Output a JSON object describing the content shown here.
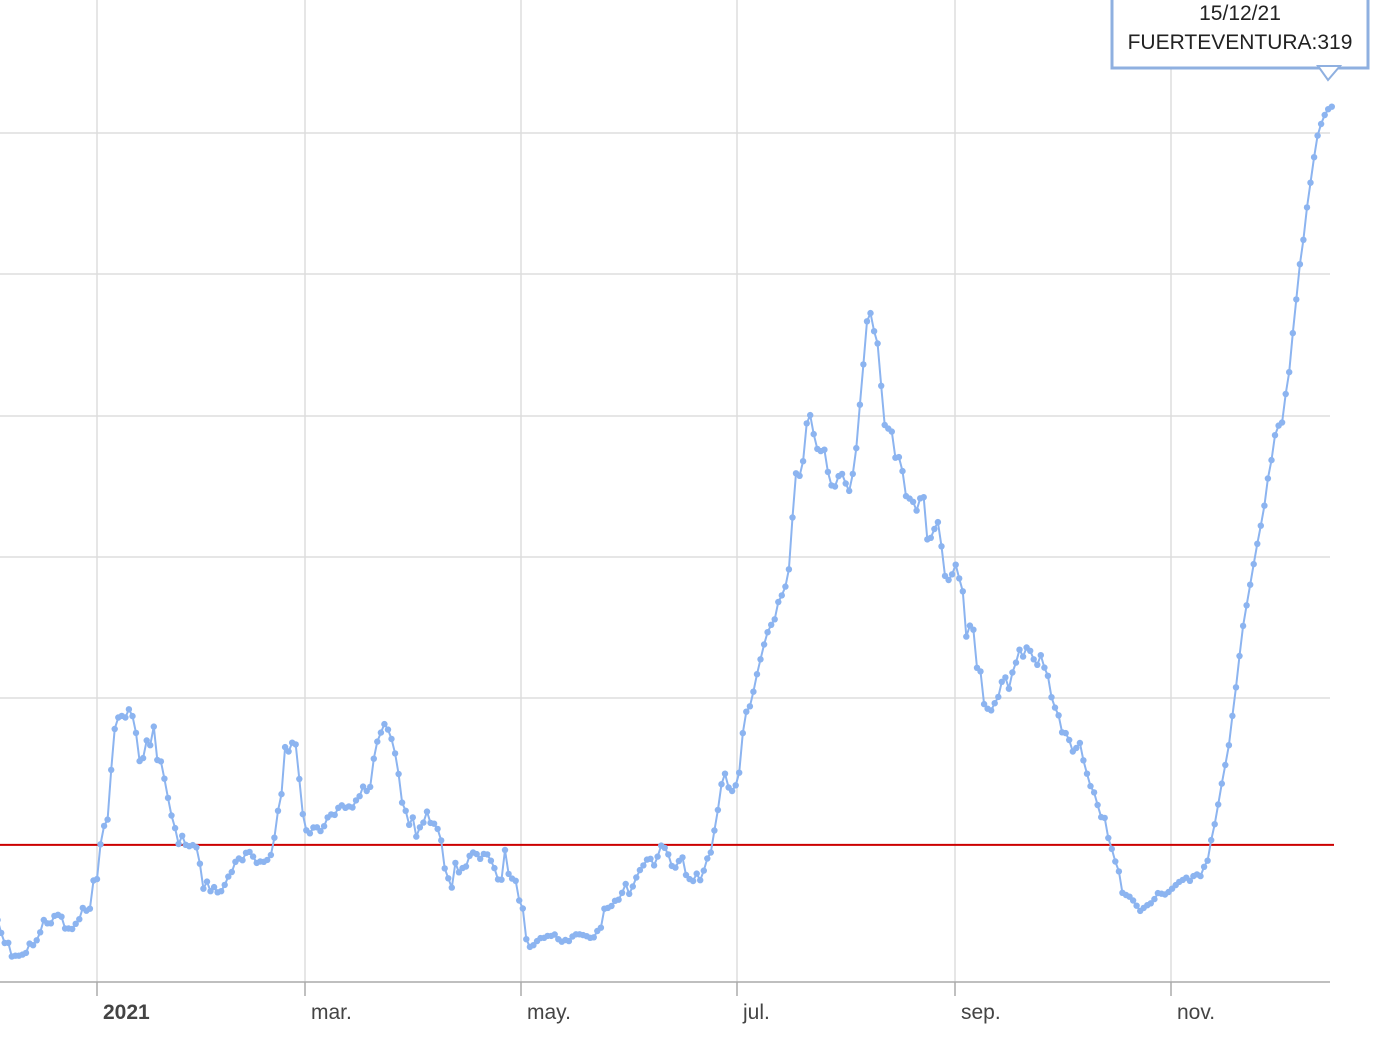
{
  "chart_data": {
    "type": "line",
    "x_labels": [
      "2021",
      "mar.",
      "may.",
      "jul.",
      "sep.",
      "nov."
    ],
    "x_label_positions_month_index": [
      0,
      2,
      4,
      6,
      8,
      10
    ],
    "series": [
      {
        "name": "FUERTEVENTURA",
        "color": "#8cb4f0",
        "x": [
          "2020-12-01",
          "2020-12-02",
          "2020-12-03",
          "2020-12-04",
          "2020-12-05",
          "2020-12-06",
          "2020-12-07",
          "2020-12-08",
          "2020-12-09",
          "2020-12-10",
          "2020-12-11",
          "2020-12-12",
          "2020-12-13",
          "2020-12-14",
          "2020-12-15",
          "2020-12-16",
          "2020-12-17",
          "2020-12-18",
          "2020-12-19",
          "2020-12-20",
          "2020-12-21",
          "2020-12-22",
          "2020-12-23",
          "2020-12-24",
          "2020-12-25",
          "2020-12-26",
          "2020-12-27",
          "2020-12-28",
          "2020-12-29",
          "2020-12-30",
          "2020-12-31",
          "2021-01-01",
          "2021-01-02",
          "2021-01-03",
          "2021-01-04",
          "2021-01-05",
          "2021-01-06",
          "2021-01-07",
          "2021-01-08",
          "2021-01-09",
          "2021-01-10",
          "2021-01-11",
          "2021-01-12",
          "2021-01-13",
          "2021-01-14",
          "2021-01-15",
          "2021-01-16",
          "2021-01-17",
          "2021-01-18",
          "2021-01-19",
          "2021-01-20",
          "2021-01-21",
          "2021-01-22",
          "2021-01-23",
          "2021-01-24",
          "2021-01-25",
          "2021-01-26",
          "2021-01-27",
          "2021-01-28",
          "2021-01-29",
          "2021-01-30",
          "2021-01-31",
          "2021-02-01",
          "2021-02-02",
          "2021-02-03",
          "2021-02-04",
          "2021-02-05",
          "2021-02-06",
          "2021-02-07",
          "2021-02-08",
          "2021-02-09",
          "2021-02-10",
          "2021-02-11",
          "2021-02-12",
          "2021-02-13",
          "2021-02-14",
          "2021-02-15",
          "2021-02-16",
          "2021-02-17",
          "2021-02-18",
          "2021-02-19",
          "2021-02-20",
          "2021-02-21",
          "2021-02-22",
          "2021-02-23",
          "2021-02-24",
          "2021-02-25",
          "2021-02-26",
          "2021-02-27",
          "2021-02-28",
          "2021-03-01",
          "2021-03-02",
          "2021-03-03",
          "2021-03-04",
          "2021-03-05",
          "2021-03-06",
          "2021-03-07",
          "2021-03-08",
          "2021-03-09",
          "2021-03-10",
          "2021-03-11",
          "2021-03-12",
          "2021-03-13",
          "2021-03-14",
          "2021-03-15",
          "2021-03-16",
          "2021-03-17",
          "2021-03-18",
          "2021-03-19",
          "2021-03-20",
          "2021-03-21",
          "2021-03-22",
          "2021-03-23",
          "2021-03-24",
          "2021-03-25",
          "2021-03-26",
          "2021-03-27",
          "2021-03-28",
          "2021-03-29",
          "2021-03-30",
          "2021-03-31",
          "2021-04-01",
          "2021-04-02",
          "2021-04-03",
          "2021-04-04",
          "2021-04-05",
          "2021-04-06",
          "2021-04-07",
          "2021-04-08",
          "2021-04-09",
          "2021-04-10",
          "2021-04-11",
          "2021-04-12",
          "2021-04-13",
          "2021-04-14",
          "2021-04-15",
          "2021-04-16",
          "2021-04-17",
          "2021-04-18",
          "2021-04-19",
          "2021-04-20",
          "2021-04-21",
          "2021-04-22",
          "2021-04-23",
          "2021-04-24",
          "2021-04-25",
          "2021-04-26",
          "2021-04-27",
          "2021-04-28",
          "2021-04-29",
          "2021-04-30",
          "2021-05-01",
          "2021-05-02",
          "2021-05-03",
          "2021-05-04",
          "2021-05-05",
          "2021-05-06",
          "2021-05-07",
          "2021-05-08",
          "2021-05-09",
          "2021-05-10",
          "2021-05-11",
          "2021-05-12",
          "2021-05-13",
          "2021-05-14",
          "2021-05-15",
          "2021-05-16",
          "2021-05-17",
          "2021-05-18",
          "2021-05-19",
          "2021-05-20",
          "2021-05-21",
          "2021-05-22",
          "2021-05-23",
          "2021-05-24",
          "2021-05-25",
          "2021-05-26",
          "2021-05-27",
          "2021-05-28",
          "2021-05-29",
          "2021-05-30",
          "2021-05-31",
          "2021-06-01",
          "2021-06-02",
          "2021-06-03",
          "2021-06-04",
          "2021-06-05",
          "2021-06-06",
          "2021-06-07",
          "2021-06-08",
          "2021-06-09",
          "2021-06-10",
          "2021-06-11",
          "2021-06-12",
          "2021-06-13",
          "2021-06-14",
          "2021-06-15",
          "2021-06-16",
          "2021-06-17",
          "2021-06-18",
          "2021-06-19",
          "2021-06-20",
          "2021-06-21",
          "2021-06-22",
          "2021-06-23",
          "2021-06-24",
          "2021-06-25",
          "2021-06-26",
          "2021-06-27",
          "2021-06-28",
          "2021-06-29",
          "2021-06-30",
          "2021-07-01",
          "2021-07-02",
          "2021-07-03",
          "2021-07-04",
          "2021-07-05",
          "2021-07-06",
          "2021-07-07",
          "2021-07-08",
          "2021-07-09",
          "2021-07-10",
          "2021-07-11",
          "2021-07-12",
          "2021-07-13",
          "2021-07-14",
          "2021-07-15",
          "2021-07-16",
          "2021-07-17",
          "2021-07-18",
          "2021-07-19",
          "2021-07-20",
          "2021-07-21",
          "2021-07-22",
          "2021-07-23",
          "2021-07-24",
          "2021-07-25",
          "2021-07-26",
          "2021-07-27",
          "2021-07-28",
          "2021-07-29",
          "2021-07-30",
          "2021-07-31",
          "2021-08-01",
          "2021-08-02",
          "2021-08-03",
          "2021-08-04",
          "2021-08-05",
          "2021-08-06",
          "2021-08-07",
          "2021-08-08",
          "2021-08-09",
          "2021-08-10",
          "2021-08-11",
          "2021-08-12",
          "2021-08-13",
          "2021-08-14",
          "2021-08-15",
          "2021-08-16",
          "2021-08-17",
          "2021-08-18",
          "2021-08-19",
          "2021-08-20",
          "2021-08-21",
          "2021-08-22",
          "2021-08-23",
          "2021-08-24",
          "2021-08-25",
          "2021-08-26",
          "2021-08-27",
          "2021-08-28",
          "2021-08-29",
          "2021-08-30",
          "2021-08-31",
          "2021-09-01",
          "2021-09-02",
          "2021-09-03",
          "2021-09-04",
          "2021-09-05",
          "2021-09-06",
          "2021-09-07",
          "2021-09-08",
          "2021-09-09",
          "2021-09-10",
          "2021-09-11",
          "2021-09-12",
          "2021-09-13",
          "2021-09-14",
          "2021-09-15",
          "2021-09-16",
          "2021-09-17",
          "2021-09-18",
          "2021-09-19",
          "2021-09-20",
          "2021-09-21",
          "2021-09-22",
          "2021-09-23",
          "2021-09-24",
          "2021-09-25",
          "2021-09-26",
          "2021-09-27",
          "2021-09-28",
          "2021-09-29",
          "2021-09-30",
          "2021-10-01",
          "2021-10-02",
          "2021-10-03",
          "2021-10-04",
          "2021-10-05",
          "2021-10-06",
          "2021-10-07",
          "2021-10-08",
          "2021-10-09",
          "2021-10-10",
          "2021-10-11",
          "2021-10-12",
          "2021-10-13",
          "2021-10-14",
          "2021-10-15",
          "2021-10-16",
          "2021-10-17",
          "2021-10-18",
          "2021-10-19",
          "2021-10-20",
          "2021-10-21",
          "2021-10-22",
          "2021-10-23",
          "2021-10-24",
          "2021-10-25",
          "2021-10-26",
          "2021-10-27",
          "2021-10-28",
          "2021-10-29",
          "2021-10-30",
          "2021-10-31",
          "2021-11-01",
          "2021-11-02",
          "2021-11-03",
          "2021-11-04",
          "2021-11-05",
          "2021-11-06",
          "2021-11-07",
          "2021-11-08",
          "2021-11-09",
          "2021-11-10",
          "2021-11-11",
          "2021-11-12",
          "2021-11-13",
          "2021-11-14",
          "2021-11-15",
          "2021-11-16",
          "2021-11-17",
          "2021-11-18",
          "2021-11-19",
          "2021-11-20",
          "2021-11-21",
          "2021-11-22",
          "2021-11-23",
          "2021-11-24",
          "2021-11-25",
          "2021-11-26",
          "2021-11-27",
          "2021-11-28",
          "2021-11-29",
          "2021-11-30",
          "2021-12-01",
          "2021-12-02",
          "2021-12-03",
          "2021-12-04",
          "2021-12-05",
          "2021-12-06",
          "2021-12-07",
          "2021-12-08",
          "2021-12-09",
          "2021-12-10",
          "2021-12-11",
          "2021-12-12",
          "2021-12-13",
          "2021-12-14",
          "2021-12-15"
        ],
        "values": [
          23.5,
          22.3,
          23.7,
          22.6,
          17.9,
          14.2,
          14.3,
          9.3,
          9.6,
          9.6,
          10.0,
          10.6,
          14.0,
          13.4,
          15.2,
          18.1,
          22.6,
          21.4,
          21.4,
          24.1,
          24.5,
          23.8,
          19.5,
          19.5,
          19.3,
          21.2,
          22.9,
          27.0,
          26.0,
          26.7,
          37.0,
          37.5,
          50.2,
          56.9,
          59.2,
          77.3,
          92.2,
          96.4,
          97.0,
          96.4,
          99.4,
          96.9,
          90.8,
          80.5,
          81.6,
          88.0,
          86.3,
          93.1,
          80.9,
          80.4,
          74.1,
          67.1,
          60.7,
          56.1,
          50.3,
          53.3,
          50.0,
          49.5,
          49.9,
          49.1,
          43.1,
          34.0,
          36.6,
          33.1,
          34.6,
          32.7,
          33.1,
          35.4,
          38.4,
          40.1,
          43.8,
          45.0,
          44.4,
          47.1,
          47.4,
          45.7,
          43.4,
          43.9,
          43.8,
          44.5,
          46.3,
          52.6,
          62.4,
          68.5,
          85.6,
          84.0,
          87.2,
          86.6,
          74.0,
          61.2,
          55.3,
          54.2,
          56.3,
          56.4,
          55.0,
          56.8,
          60.0,
          61.1,
          60.9,
          63.5,
          64.4,
          63.5,
          64.0,
          63.6,
          66.2,
          67.7,
          71.2,
          69.6,
          71.1,
          81.4,
          87.6,
          90.9,
          94.0,
          92.0,
          88.6,
          83.3,
          75.8,
          65.4,
          62.4,
          57.3,
          60.0,
          53.0,
          56.4,
          58.1,
          62.1,
          58.0,
          57.7,
          55.8,
          51.6,
          41.4,
          37.8,
          34.4,
          43.4,
          40.0,
          41.5,
          42.1,
          46.0,
          47.2,
          46.6,
          44.9,
          46.7,
          46.5,
          44.2,
          41.5,
          37.4,
          37.3,
          48.1,
          39.4,
          37.7,
          36.9,
          29.7,
          26.8,
          15.6,
          12.8,
          13.4,
          14.9,
          16.0,
          16.1,
          16.8,
          16.8,
          17.3,
          15.6,
          14.7,
          15.3,
          14.9,
          16.6,
          17.4,
          17.4,
          17.1,
          16.7,
          16.1,
          16.3,
          18.6,
          19.8,
          26.7,
          27.0,
          27.7,
          29.6,
          30.0,
          32.5,
          35.7,
          32.1,
          34.8,
          38.1,
          40.8,
          42.5,
          44.6,
          44.9,
          42.5,
          45.7,
          49.7,
          48.9,
          46.5,
          42.3,
          41.7,
          44.1,
          45.4,
          39.0,
          37.5,
          36.8,
          39.5,
          37.1,
          40.6,
          45.0,
          47.2,
          55.2,
          62.7,
          72.1,
          75.9,
          70.9,
          69.6,
          71.7,
          76.3,
          90.7,
          98.5,
          100.5,
          105.8,
          112.2,
          117.6,
          123.0,
          127.5,
          130.2,
          132.2,
          138.5,
          140.9,
          144.1,
          150.4,
          169.3,
          185.4,
          184.5,
          189.8,
          203.6,
          206.6,
          199.7,
          194.3,
          193.5,
          194.0,
          185.9,
          181.0,
          180.6,
          184.4,
          185.2,
          181.7,
          179.0,
          185.2,
          194.6,
          210.4,
          225.1,
          240.8,
          243.8,
          237.2,
          232.7,
          217.3,
          203.0,
          201.7,
          200.6,
          191.1,
          191.3,
          186.2,
          177.1,
          176.2,
          175.0,
          171.8,
          176.3,
          176.7,
          161.3,
          161.9,
          165.1,
          167.6,
          158.8,
          148.0,
          146.5,
          148.6,
          152.1,
          147.1,
          142.4,
          125.9,
          129.9,
          128.4,
          114.5,
          113.2,
          101.3,
          99.6,
          99.0,
          101.6,
          103.9,
          109.4,
          111.0,
          106.9,
          112.8,
          116.4,
          121.1,
          118.6,
          121.9,
          120.7,
          117.6,
          115.6,
          119.1,
          114.6,
          111.6,
          103.8,
          100.0,
          97.2,
          91.0,
          90.7,
          88.2,
          84.0,
          85.3,
          87.1,
          80.8,
          75.9,
          71.4,
          69.1,
          64.5,
          60.1,
          59.8,
          52.5,
          48.5,
          43.9,
          40.3,
          32.5,
          31.7,
          31.1,
          29.7,
          27.8,
          25.9,
          27.0,
          28.0,
          28.7,
          30.2,
          32.4,
          32.2,
          31.9,
          32.8,
          34.0,
          35.3,
          36.5,
          37.2,
          38.0,
          36.9,
          38.6,
          39.2,
          38.6,
          42.0,
          44.2,
          51.7,
          57.5,
          64.7,
          72.3,
          79.1,
          86.3,
          97.0,
          107.4,
          118.8,
          129.8,
          137.3,
          144.8,
          152.3,
          159.7,
          166.3,
          173.6,
          183.5,
          190.2,
          199.3,
          202.8,
          203.9,
          214.3,
          222.3,
          236.5,
          248.8,
          261.6,
          270.5,
          282.3,
          291.3,
          300.6,
          308.5,
          312.7,
          316.0,
          318.1,
          319.0
        ],
        "values_note": "units as plotted"
      }
    ],
    "reference_line": {
      "value": 50,
      "color": "#cc0000"
    },
    "ylim": [
      0,
      320
    ],
    "grid": true,
    "tooltip": {
      "date": "15/12/21",
      "label": "FUERTEVENTURA:319"
    }
  }
}
